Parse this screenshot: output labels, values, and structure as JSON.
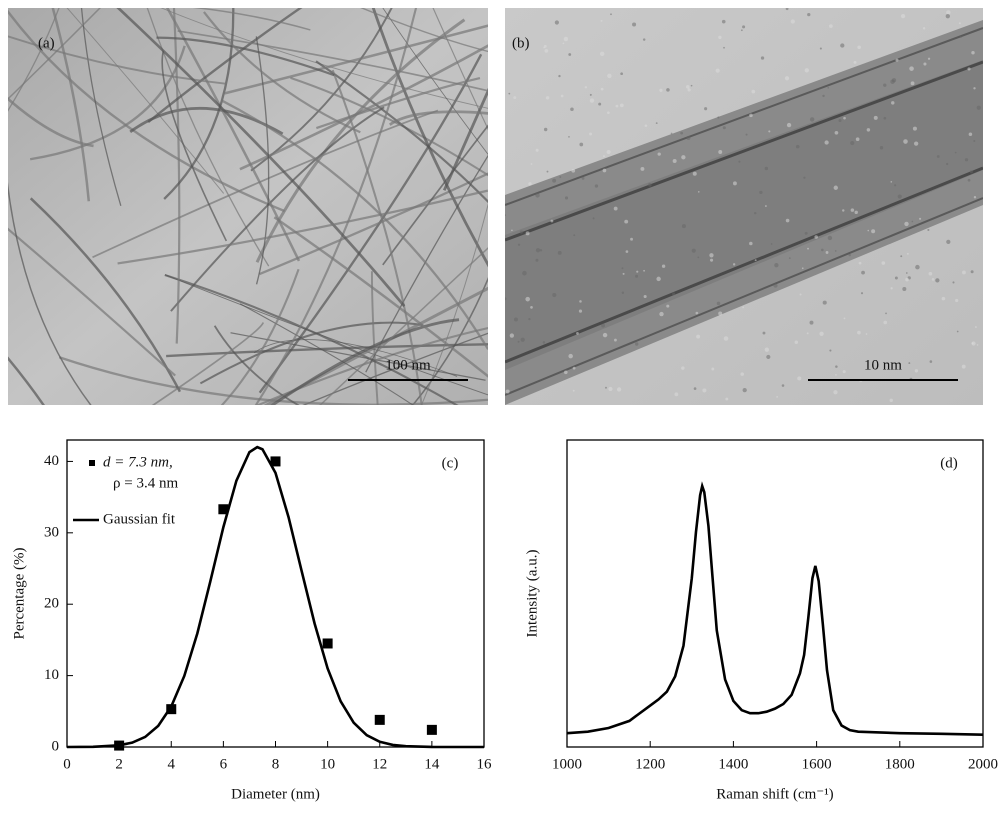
{
  "panels": [
    {
      "label": "(a)",
      "scale_bar": "100 nm"
    },
    {
      "label": "(b)",
      "scale_bar": "10 nm"
    }
  ],
  "chart_data": [
    {
      "type": "scatter",
      "label": "(c)",
      "x_label": "Diameter (nm)",
      "y_label": "Percentage (%)",
      "xlim": [
        0,
        16
      ],
      "xticks": [
        0,
        2,
        4,
        6,
        8,
        10,
        12,
        14,
        16
      ],
      "ylim": [
        0,
        43
      ],
      "yticks": [
        0,
        10,
        20,
        30,
        40
      ],
      "series": [
        {
          "name": "d = 7.3 nm,",
          "note": "ρ = 3.4 nm",
          "type": "scatter",
          "color": "#000000",
          "x": [
            2,
            4,
            6,
            8,
            10,
            12,
            14
          ],
          "values": [
            0.2,
            5.3,
            33.3,
            40,
            14.5,
            3.8,
            2.4
          ]
        },
        {
          "name": "Gaussian fit",
          "type": "line",
          "color": "#000000",
          "x": [
            0,
            1,
            2,
            2.5,
            3,
            3.5,
            4,
            4.5,
            5,
            5.5,
            6,
            6.5,
            7,
            7.3,
            7.5,
            8,
            8.5,
            9,
            9.5,
            10,
            10.5,
            11,
            11.5,
            12,
            12.5,
            13,
            14,
            16
          ],
          "values": [
            0,
            0.03,
            0.24,
            0.61,
            1.41,
            2.96,
            5.68,
            9.95,
            15.9,
            23.2,
            30.8,
            37.3,
            41.3,
            42,
            41.7,
            38.4,
            32.2,
            24.7,
            17.3,
            11.0,
            6.4,
            3.4,
            1.65,
            0.73,
            0.29,
            0.11,
            0.01,
            0
          ]
        }
      ]
    },
    {
      "type": "line",
      "label": "(d)",
      "x_label": "Raman shift (cm⁻¹)",
      "y_label": "Intensity (a.u.)",
      "xlim": [
        1000,
        2000
      ],
      "xticks": [
        1000,
        1200,
        1400,
        1600,
        1800,
        2000
      ],
      "ylim": [
        0,
        100
      ],
      "series": [
        {
          "color": "#000000",
          "x": [
            1000,
            1050,
            1100,
            1150,
            1170,
            1200,
            1220,
            1240,
            1260,
            1280,
            1300,
            1310,
            1320,
            1325,
            1330,
            1340,
            1350,
            1360,
            1380,
            1400,
            1420,
            1440,
            1460,
            1480,
            1500,
            1520,
            1540,
            1560,
            1570,
            1580,
            1590,
            1597,
            1605,
            1615,
            1625,
            1640,
            1660,
            1680,
            1700,
            1800,
            1900,
            2000
          ],
          "values": [
            4.5,
            5.0,
            6.2,
            8.5,
            10.5,
            13.5,
            15.5,
            18,
            23,
            33,
            55,
            70,
            82,
            85,
            83,
            72,
            55,
            38,
            22,
            15,
            12,
            11,
            11,
            11.5,
            12.5,
            14,
            17,
            24,
            30,
            42,
            55,
            59,
            54,
            40,
            25,
            12,
            7,
            5.5,
            5,
            4.5,
            4.3,
            4.0
          ]
        }
      ]
    }
  ]
}
